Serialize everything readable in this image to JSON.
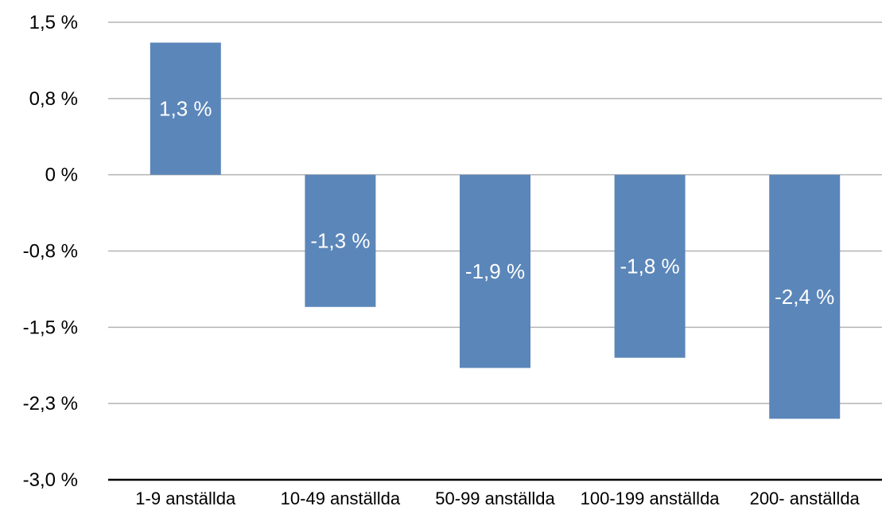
{
  "chart_data": {
    "type": "bar",
    "categories": [
      "1-9 anställda",
      "10-49 anställda",
      "50-99 anställda",
      "100-199 anställda",
      "200- anställda"
    ],
    "values": [
      1.3,
      -1.3,
      -1.9,
      -1.8,
      -2.4
    ],
    "data_labels": [
      "1,3 %",
      "-1,3 %",
      "-1,9 %",
      "-1,8 %",
      "-2,4 %"
    ],
    "y_ticks": [
      1.5,
      0.75,
      0,
      -0.75,
      -1.5,
      -2.25,
      -3.0
    ],
    "y_tick_labels": [
      "1,5 %",
      "0,8 %",
      "0 %",
      "-0,8 %",
      "-1,5 %",
      "-2,3 %",
      "-3,0 %"
    ],
    "ylim": [
      -3.0,
      1.5
    ],
    "grid": true,
    "legend": "none",
    "bar_color": "#5b86b9"
  }
}
